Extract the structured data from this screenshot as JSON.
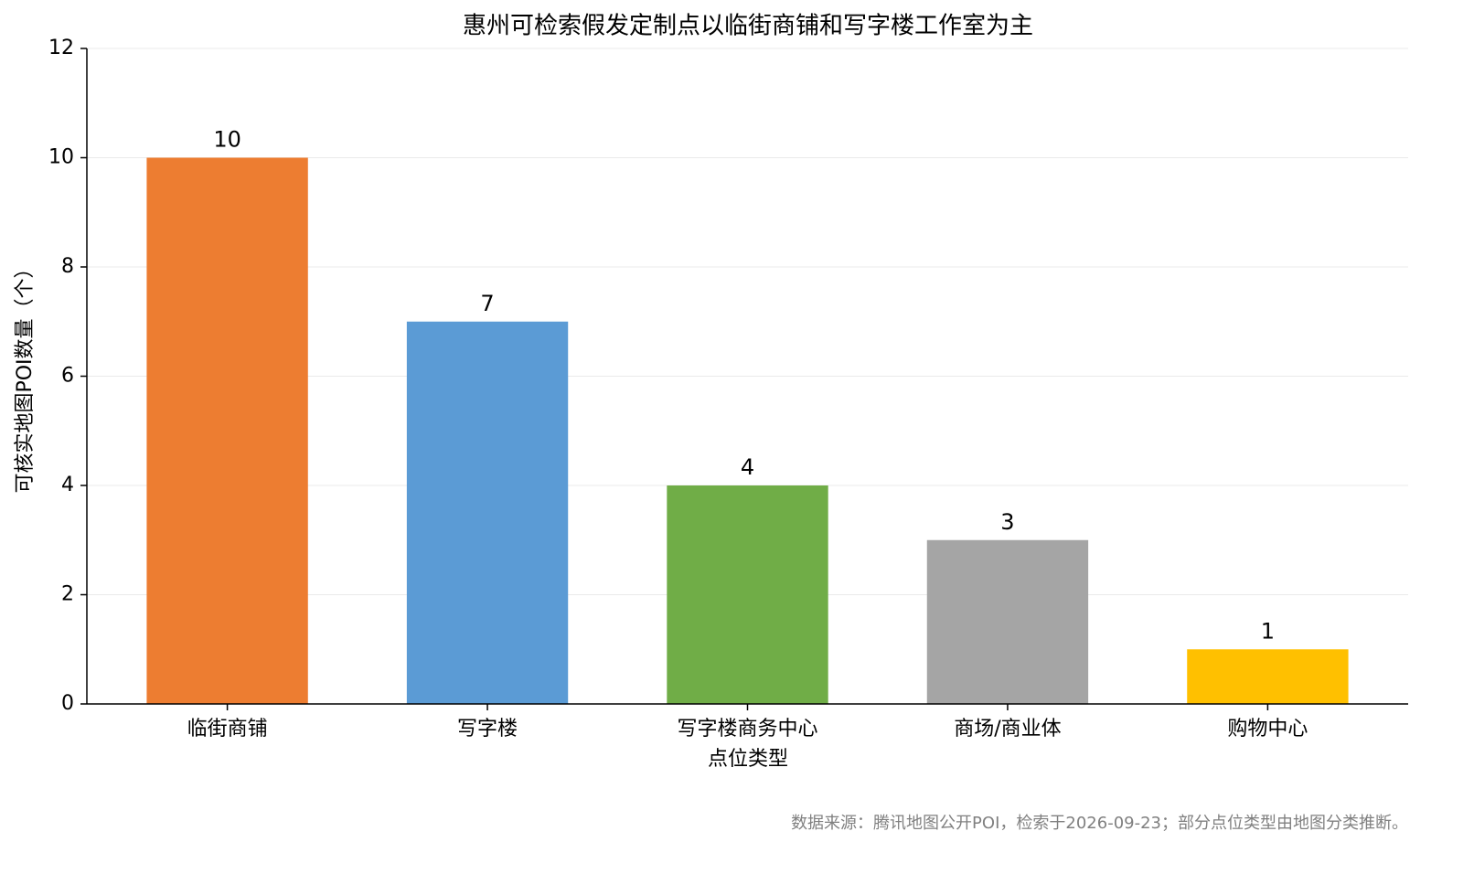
{
  "chart_data": {
    "type": "bar",
    "title": "惠州可检索假发定制点以临街商铺和写字楼工作室为主",
    "x_label": "点位类型",
    "y_label": "可核实地图POI数量（个）",
    "note": "数据来源：腾讯地图公开POI，检索于2026-09-23；部分点位类型由地图分类推断。",
    "categories": [
      "临街商铺",
      "写字楼",
      "写字楼商务中心",
      "商场/商业体",
      "购物中心"
    ],
    "values": [
      10,
      7,
      4,
      3,
      1
    ],
    "colors": [
      "#ED7D31",
      "#5B9BD5",
      "#70AD47",
      "#A5A5A5",
      "#FFC000"
    ],
    "ylim": [
      0,
      12
    ],
    "yticks": [
      0,
      2,
      4,
      6,
      8,
      10,
      12
    ],
    "grid": true
  }
}
